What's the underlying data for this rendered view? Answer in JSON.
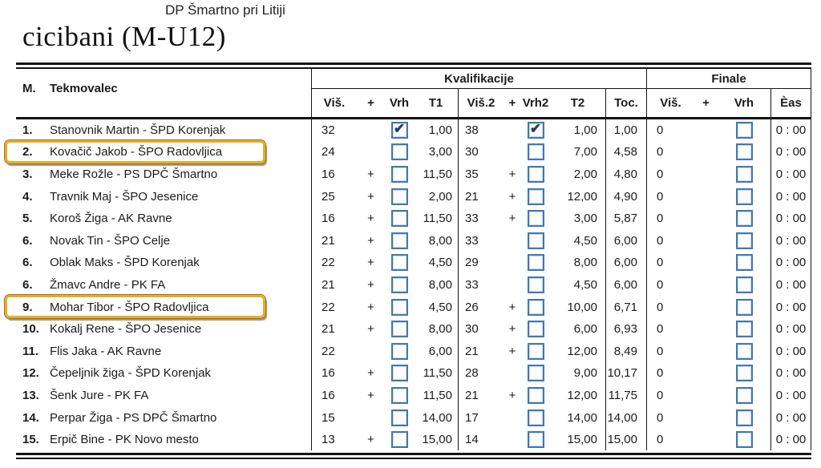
{
  "page": {
    "event_title": "DP Šmartno pri Litiji",
    "category_title": "cicibani (M-U12)"
  },
  "table": {
    "header": {
      "rank": "M.",
      "competitor": "Tekmovalec",
      "qualification_group": "Kvalifikacije",
      "final_group": "Finale",
      "columns": {
        "vis": "Viš.",
        "plus": "+",
        "vrh": "Vrh",
        "t1": "T1",
        "vis2": "Viš.2",
        "plus2": "+",
        "vrh2": "Vrh2",
        "t2": "T2",
        "toc": "Toc.",
        "fvis": "Viš.",
        "fplus": "+",
        "fvrh": "Vrh",
        "cas": "Èas"
      }
    },
    "rows": [
      {
        "rank": "1.",
        "name": "Stanovnik Martin - ŠPD Korenjak",
        "vis": "32",
        "plus": "",
        "vrh_checked": true,
        "t1": "1,00",
        "vis2": "38",
        "plus2": "",
        "vrh2_checked": true,
        "t2": "1,00",
        "toc": "1,00",
        "fvis": "0",
        "fplus": "",
        "fvrh_checked": false,
        "cas": "0 : 00",
        "highlighted": false
      },
      {
        "rank": "2.",
        "name": "Kovačič Jakob - ŠPO Radovljica",
        "vis": "24",
        "plus": "",
        "vrh_checked": false,
        "t1": "3,00",
        "vis2": "30",
        "plus2": "",
        "vrh2_checked": false,
        "t2": "7,00",
        "toc": "4,58",
        "fvis": "0",
        "fplus": "",
        "fvrh_checked": false,
        "cas": "0 : 00",
        "highlighted": true
      },
      {
        "rank": "3.",
        "name": "Meke Rožle - PS DPČ Šmartno",
        "vis": "16",
        "plus": "+",
        "vrh_checked": false,
        "t1": "11,50",
        "vis2": "35",
        "plus2": "+",
        "vrh2_checked": false,
        "t2": "2,00",
        "toc": "4,80",
        "fvis": "0",
        "fplus": "",
        "fvrh_checked": false,
        "cas": "0 : 00",
        "highlighted": false
      },
      {
        "rank": "4.",
        "name": "Travnik Maj - ŠPO Jesenice",
        "vis": "25",
        "plus": "+",
        "vrh_checked": false,
        "t1": "2,00",
        "vis2": "21",
        "plus2": "+",
        "vrh2_checked": false,
        "t2": "12,00",
        "toc": "4,90",
        "fvis": "0",
        "fplus": "",
        "fvrh_checked": false,
        "cas": "0 : 00",
        "highlighted": false
      },
      {
        "rank": "5.",
        "name": "Koroš Žiga - AK Ravne",
        "vis": "16",
        "plus": "+",
        "vrh_checked": false,
        "t1": "11,50",
        "vis2": "33",
        "plus2": "+",
        "vrh2_checked": false,
        "t2": "3,00",
        "toc": "5,87",
        "fvis": "0",
        "fplus": "",
        "fvrh_checked": false,
        "cas": "0 : 00",
        "highlighted": false
      },
      {
        "rank": "6.",
        "name": "Novak Tin  - ŠPO Celje",
        "vis": "21",
        "plus": "+",
        "vrh_checked": false,
        "t1": "8,00",
        "vis2": "33",
        "plus2": "",
        "vrh2_checked": false,
        "t2": "4,50",
        "toc": "6,00",
        "fvis": "0",
        "fplus": "",
        "fvrh_checked": false,
        "cas": "0 : 00",
        "highlighted": false
      },
      {
        "rank": "6.",
        "name": "Oblak Maks - ŠPD Korenjak",
        "vis": "22",
        "plus": "+",
        "vrh_checked": false,
        "t1": "4,50",
        "vis2": "29",
        "plus2": "",
        "vrh2_checked": false,
        "t2": "8,00",
        "toc": "6,00",
        "fvis": "0",
        "fplus": "",
        "fvrh_checked": false,
        "cas": "0 : 00",
        "highlighted": false
      },
      {
        "rank": "6.",
        "name": "Žmavc Andre - PK FA",
        "vis": "21",
        "plus": "+",
        "vrh_checked": false,
        "t1": "8,00",
        "vis2": "33",
        "plus2": "",
        "vrh2_checked": false,
        "t2": "4,50",
        "toc": "6,00",
        "fvis": "0",
        "fplus": "",
        "fvrh_checked": false,
        "cas": "0 : 00",
        "highlighted": false
      },
      {
        "rank": "9.",
        "name": "Mohar Tibor - ŠPO Radovljica",
        "vis": "22",
        "plus": "+",
        "vrh_checked": false,
        "t1": "4,50",
        "vis2": "26",
        "plus2": "+",
        "vrh2_checked": false,
        "t2": "10,00",
        "toc": "6,71",
        "fvis": "0",
        "fplus": "",
        "fvrh_checked": false,
        "cas": "0 : 00",
        "highlighted": true
      },
      {
        "rank": "10.",
        "name": "Kokalj Rene - ŠPO Jesenice",
        "vis": "21",
        "plus": "+",
        "vrh_checked": false,
        "t1": "8,00",
        "vis2": "30",
        "plus2": "+",
        "vrh2_checked": false,
        "t2": "6,00",
        "toc": "6,93",
        "fvis": "0",
        "fplus": "",
        "fvrh_checked": false,
        "cas": "0 : 00",
        "highlighted": false
      },
      {
        "rank": "11.",
        "name": "Flis Jaka  - AK Ravne",
        "vis": "22",
        "plus": "",
        "vrh_checked": false,
        "t1": "6,00",
        "vis2": "21",
        "plus2": "+",
        "vrh2_checked": false,
        "t2": "12,00",
        "toc": "8,49",
        "fvis": "0",
        "fplus": "",
        "fvrh_checked": false,
        "cas": "0 : 00",
        "highlighted": false
      },
      {
        "rank": "12.",
        "name": "Čepeljnik žiga - ŠPD Korenjak",
        "vis": "16",
        "plus": "+",
        "vrh_checked": false,
        "t1": "11,50",
        "vis2": "28",
        "plus2": "",
        "vrh2_checked": false,
        "t2": "9,00",
        "toc": "10,17",
        "fvis": "0",
        "fplus": "",
        "fvrh_checked": false,
        "cas": "0 : 00",
        "highlighted": false
      },
      {
        "rank": "13.",
        "name": "Šenk Jure - PK FA",
        "vis": "16",
        "plus": "+",
        "vrh_checked": false,
        "t1": "11,50",
        "vis2": "21",
        "plus2": "+",
        "vrh2_checked": false,
        "t2": "12,00",
        "toc": "11,75",
        "fvis": "0",
        "fplus": "",
        "fvrh_checked": false,
        "cas": "0 : 00",
        "highlighted": false
      },
      {
        "rank": "14.",
        "name": "Perpar Žiga - PS DPČ Šmartno",
        "vis": "15",
        "plus": "",
        "vrh_checked": false,
        "t1": "14,00",
        "vis2": "17",
        "plus2": "",
        "vrh2_checked": false,
        "t2": "14,00",
        "toc": "14,00",
        "fvis": "0",
        "fplus": "",
        "fvrh_checked": false,
        "cas": "0 : 00",
        "highlighted": false
      },
      {
        "rank": "15.",
        "name": "Erpič Bine - PK Novo mesto",
        "vis": "13",
        "plus": "+",
        "vrh_checked": false,
        "t1": "15,00",
        "vis2": "14",
        "plus2": "",
        "vrh2_checked": false,
        "t2": "15,00",
        "toc": "15,00",
        "fvis": "0",
        "fplus": "",
        "fvrh_checked": false,
        "cas": "0 : 00",
        "highlighted": false
      }
    ]
  },
  "colors": {
    "checkbox_border": "#4678a9",
    "checkmark": "#1c3c66",
    "highlight_border": "#ecab2b",
    "rule": "#141414"
  }
}
